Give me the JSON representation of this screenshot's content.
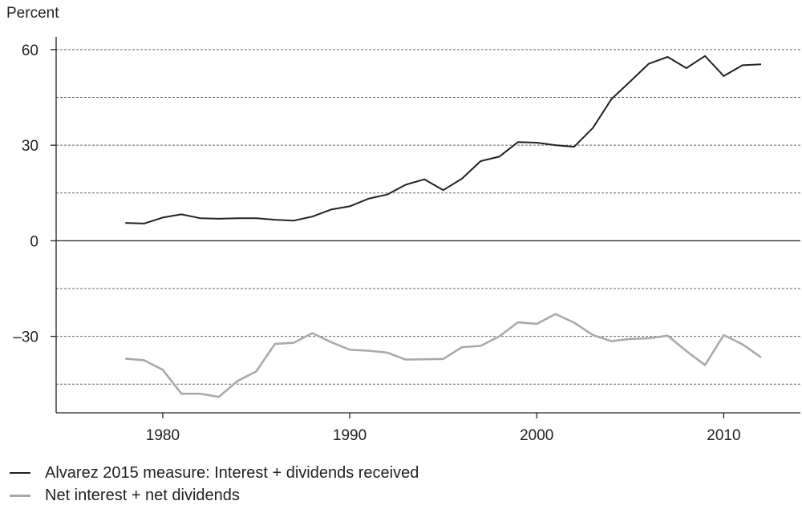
{
  "chart_data": {
    "type": "line",
    "title": "",
    "xlabel": "",
    "ylabel": "Percent",
    "xlim": [
      1974.3,
      2014.1
    ],
    "ylim": [
      -54,
      64
    ],
    "x_ticks": [
      1980,
      1990,
      2000,
      2010
    ],
    "y_ticks": [
      60,
      30,
      0,
      -30
    ],
    "y_tick_labels": [
      "60",
      "30",
      "0",
      "–30"
    ],
    "gridlines": [
      60,
      45,
      30,
      15,
      -15,
      -30,
      -45
    ],
    "zero_line": 0,
    "grid": "dashed horizontal",
    "legend_position": "bottom-left",
    "x": [
      1978,
      1979,
      1980,
      1981,
      1982,
      1983,
      1984,
      1985,
      1986,
      1987,
      1988,
      1989,
      1990,
      1991,
      1992,
      1993,
      1994,
      1995,
      1996,
      1997,
      1998,
      1999,
      2000,
      2001,
      2002,
      2003,
      2004,
      2005,
      2006,
      2007,
      2008,
      2009,
      2010,
      2011,
      2012
    ],
    "series": [
      {
        "name": "Alvarez 2015 measure: Interest + dividends received",
        "color": "#222222",
        "values": [
          5.6,
          5.4,
          7.3,
          8.3,
          7.1,
          6.9,
          7.1,
          7.1,
          6.6,
          6.3,
          7.6,
          9.8,
          10.8,
          13.2,
          14.5,
          17.6,
          19.3,
          15.9,
          19.5,
          25.0,
          26.4,
          31.0,
          30.8,
          30.0,
          29.5,
          35.4,
          44.5,
          50.0,
          55.6,
          57.7,
          54.2,
          58.0,
          51.7,
          55.1,
          55.4
        ]
      },
      {
        "name": "Net interest + net dividends",
        "color": "#aaaaaa",
        "values": [
          -37.0,
          -37.5,
          -40.5,
          -48.0,
          -48.0,
          -49.0,
          -44.0,
          -41.0,
          -32.4,
          -32.0,
          -29.0,
          -31.8,
          -34.2,
          -34.5,
          -35.1,
          -37.3,
          -37.2,
          -37.1,
          -33.4,
          -33.0,
          -30.0,
          -25.6,
          -26.1,
          -23.0,
          -25.7,
          -29.6,
          -31.5,
          -30.8,
          -30.6,
          -29.8,
          -34.6,
          -39.0,
          -29.6,
          -32.5,
          -36.6
        ]
      }
    ]
  }
}
